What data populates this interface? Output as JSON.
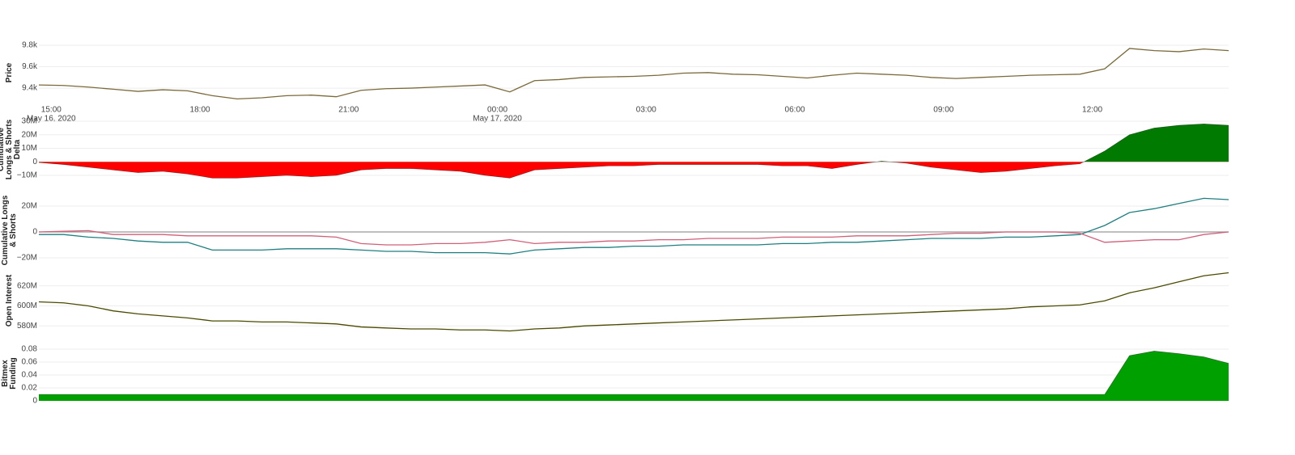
{
  "chart_data": [
    {
      "type": "line",
      "y_label": "Price",
      "grid": true,
      "x": [
        "2020-05-16 14:45",
        "2020-05-16 15:15",
        "2020-05-16 15:45",
        "2020-05-16 16:15",
        "2020-05-16 16:45",
        "2020-05-16 17:15",
        "2020-05-16 17:45",
        "2020-05-16 18:15",
        "2020-05-16 18:45",
        "2020-05-16 19:15",
        "2020-05-16 19:45",
        "2020-05-16 20:15",
        "2020-05-16 20:45",
        "2020-05-16 21:15",
        "2020-05-16 21:45",
        "2020-05-16 22:15",
        "2020-05-16 22:45",
        "2020-05-16 23:15",
        "2020-05-16 23:45",
        "2020-05-17 00:15",
        "2020-05-17 00:45",
        "2020-05-17 01:15",
        "2020-05-17 01:45",
        "2020-05-17 02:15",
        "2020-05-17 02:45",
        "2020-05-17 03:15",
        "2020-05-17 03:45",
        "2020-05-17 04:15",
        "2020-05-17 04:45",
        "2020-05-17 05:15",
        "2020-05-17 05:45",
        "2020-05-17 06:15",
        "2020-05-17 06:45",
        "2020-05-17 07:15",
        "2020-05-17 07:45",
        "2020-05-17 08:15",
        "2020-05-17 08:45",
        "2020-05-17 09:15",
        "2020-05-17 09:45",
        "2020-05-17 10:15",
        "2020-05-17 10:45",
        "2020-05-17 11:15",
        "2020-05-17 11:45",
        "2020-05-17 12:15",
        "2020-05-17 12:45",
        "2020-05-17 13:15",
        "2020-05-17 13:45",
        "2020-05-17 14:15",
        "2020-05-17 14:45"
      ],
      "xlim": [
        "2020-05-16 14:45",
        "2020-05-17 14:45"
      ],
      "xticks": [
        {
          "value": "2020-05-16 15:00",
          "label": "15:00"
        },
        {
          "value": "2020-05-16 18:00",
          "label": "18:00"
        },
        {
          "value": "2020-05-16 21:00",
          "label": "21:00"
        },
        {
          "value": "2020-05-17 00:00",
          "label": "00:00"
        },
        {
          "value": "2020-05-17 03:00",
          "label": "03:00"
        },
        {
          "value": "2020-05-17 06:00",
          "label": "06:00"
        },
        {
          "value": "2020-05-17 09:00",
          "label": "09:00"
        },
        {
          "value": "2020-05-17 12:00",
          "label": "12:00"
        }
      ],
      "x_date_labels": [
        {
          "value": "2020-05-16 15:00",
          "label": "May 16, 2020"
        },
        {
          "value": "2020-05-17 00:00",
          "label": "May 17, 2020"
        }
      ],
      "ylim": [
        9265,
        9845
      ],
      "yticks": [
        {
          "value": 9400,
          "label": "9.4k"
        },
        {
          "value": 9600,
          "label": "9.6k"
        },
        {
          "value": 9800,
          "label": "9.8k"
        }
      ],
      "series": [
        {
          "color": "#7a6a3a",
          "values": [
            9430,
            9425,
            9410,
            9390,
            9370,
            9385,
            9375,
            9330,
            9300,
            9310,
            9330,
            9335,
            9320,
            9380,
            9395,
            9400,
            9410,
            9420,
            9430,
            9365,
            9470,
            9480,
            9500,
            9505,
            9510,
            9520,
            9540,
            9545,
            9530,
            9525,
            9510,
            9495,
            9520,
            9540,
            9530,
            9520,
            9500,
            9490,
            9500,
            9510,
            9520,
            9525,
            9530,
            9580,
            9770,
            9750,
            9740,
            9765,
            9750
          ]
        }
      ]
    },
    {
      "type": "area",
      "y_label": "Cumulative Longs & Shorts Delta",
      "grid": true,
      "x": [
        "2020-05-16 14:45",
        "2020-05-16 15:15",
        "2020-05-16 15:45",
        "2020-05-16 16:15",
        "2020-05-16 16:45",
        "2020-05-16 17:15",
        "2020-05-16 17:45",
        "2020-05-16 18:15",
        "2020-05-16 18:45",
        "2020-05-16 19:15",
        "2020-05-16 19:45",
        "2020-05-16 20:15",
        "2020-05-16 20:45",
        "2020-05-16 21:15",
        "2020-05-16 21:45",
        "2020-05-16 22:15",
        "2020-05-16 22:45",
        "2020-05-16 23:15",
        "2020-05-16 23:45",
        "2020-05-17 00:15",
        "2020-05-17 00:45",
        "2020-05-17 01:15",
        "2020-05-17 01:45",
        "2020-05-17 02:15",
        "2020-05-17 02:45",
        "2020-05-17 03:15",
        "2020-05-17 03:45",
        "2020-05-17 04:15",
        "2020-05-17 04:45",
        "2020-05-17 05:15",
        "2020-05-17 05:45",
        "2020-05-17 06:15",
        "2020-05-17 06:45",
        "2020-05-17 07:15",
        "2020-05-17 07:45",
        "2020-05-17 08:15",
        "2020-05-17 08:45",
        "2020-05-17 09:15",
        "2020-05-17 09:45",
        "2020-05-17 10:15",
        "2020-05-17 10:45",
        "2020-05-17 11:15",
        "2020-05-17 11:45",
        "2020-05-17 12:15",
        "2020-05-17 12:45",
        "2020-05-17 13:15",
        "2020-05-17 13:45",
        "2020-05-17 14:15",
        "2020-05-17 14:45"
      ],
      "xlim": [
        "2020-05-16 14:45",
        "2020-05-17 14:45"
      ],
      "ylim": [
        -13000000,
        30000000
      ],
      "yticks": [
        {
          "value": -10000000,
          "label": "−10M"
        },
        0,
        {
          "value": 10000000,
          "label": "10M"
        },
        {
          "value": 20000000,
          "label": "20M"
        },
        {
          "value": 30000000,
          "label": "30M"
        }
      ],
      "colors": {
        "positive": "#007a00",
        "negative": "#ff0000"
      },
      "values": [
        -500000,
        -2000000,
        -4000000,
        -6000000,
        -8000000,
        -7000000,
        -9000000,
        -12000000,
        -12000000,
        -11000000,
        -10000000,
        -11000000,
        -10000000,
        -6000000,
        -5000000,
        -5000000,
        -6000000,
        -7000000,
        -10000000,
        -12000000,
        -6000000,
        -5000000,
        -4000000,
        -3000000,
        -3000000,
        -2000000,
        -2000000,
        -2000000,
        -2000000,
        -2000000,
        -3000000,
        -3000000,
        -5000000,
        -2000000,
        500000,
        -1000000,
        -4000000,
        -6000000,
        -8000000,
        -7000000,
        -5000000,
        -3000000,
        -1500000,
        8000000,
        20000000,
        25000000,
        27000000,
        28000000,
        27000000
      ]
    },
    {
      "type": "line",
      "y_label": "Cumulative Longs & Shorts",
      "grid": true,
      "zeroline": true,
      "x": [
        "2020-05-16 14:45",
        "2020-05-16 15:15",
        "2020-05-16 15:45",
        "2020-05-16 16:15",
        "2020-05-16 16:45",
        "2020-05-16 17:15",
        "2020-05-16 17:45",
        "2020-05-16 18:15",
        "2020-05-16 18:45",
        "2020-05-16 19:15",
        "2020-05-16 19:45",
        "2020-05-16 20:15",
        "2020-05-16 20:45",
        "2020-05-16 21:15",
        "2020-05-16 21:45",
        "2020-05-16 22:15",
        "2020-05-16 22:45",
        "2020-05-16 23:15",
        "2020-05-16 23:45",
        "2020-05-17 00:15",
        "2020-05-17 00:45",
        "2020-05-17 01:15",
        "2020-05-17 01:45",
        "2020-05-17 02:15",
        "2020-05-17 02:45",
        "2020-05-17 03:15",
        "2020-05-17 03:45",
        "2020-05-17 04:15",
        "2020-05-17 04:45",
        "2020-05-17 05:15",
        "2020-05-17 05:45",
        "2020-05-17 06:15",
        "2020-05-17 06:45",
        "2020-05-17 07:15",
        "2020-05-17 07:45",
        "2020-05-17 08:15",
        "2020-05-17 08:45",
        "2020-05-17 09:15",
        "2020-05-17 09:45",
        "2020-05-17 10:15",
        "2020-05-17 10:45",
        "2020-05-17 11:15",
        "2020-05-17 11:45",
        "2020-05-17 12:15",
        "2020-05-17 12:45",
        "2020-05-17 13:15",
        "2020-05-17 13:45",
        "2020-05-17 14:15",
        "2020-05-17 14:45"
      ],
      "xlim": [
        "2020-05-16 14:45",
        "2020-05-17 14:45"
      ],
      "ylim": [
        -24000000,
        29000000
      ],
      "yticks": [
        {
          "value": -20000000,
          "label": "−20M"
        },
        0,
        {
          "value": 20000000,
          "label": "20M"
        }
      ],
      "series": [
        {
          "color": "#1f7f80",
          "values": [
            -2000000,
            -2000000,
            -4000000,
            -5000000,
            -7000000,
            -8000000,
            -8000000,
            -14000000,
            -14000000,
            -14000000,
            -13000000,
            -13000000,
            -13000000,
            -14000000,
            -15000000,
            -15000000,
            -16000000,
            -16000000,
            -16000000,
            -17000000,
            -14000000,
            -13000000,
            -12000000,
            -12000000,
            -11000000,
            -11000000,
            -10000000,
            -10000000,
            -10000000,
            -10000000,
            -9000000,
            -9000000,
            -8000000,
            -8000000,
            -7000000,
            -6000000,
            -5000000,
            -5000000,
            -5000000,
            -4000000,
            -4000000,
            -3000000,
            -2000000,
            5000000,
            15000000,
            18000000,
            22000000,
            26000000,
            25000000
          ]
        },
        {
          "color": "#d0607a",
          "values": [
            0,
            500000,
            1000000,
            -2000000,
            -2000000,
            -2000000,
            -3000000,
            -3000000,
            -3000000,
            -3000000,
            -3000000,
            -3000000,
            -4000000,
            -9000000,
            -10000000,
            -10000000,
            -9000000,
            -9000000,
            -8000000,
            -6000000,
            -9000000,
            -8000000,
            -8000000,
            -7000000,
            -7000000,
            -6000000,
            -6000000,
            -5000000,
            -5000000,
            -5000000,
            -4000000,
            -4000000,
            -4000000,
            -3000000,
            -3000000,
            -3000000,
            -2000000,
            -1000000,
            -1000000,
            0,
            0,
            0,
            -1000000,
            -8000000,
            -7000000,
            -6000000,
            -6000000,
            -2000000,
            0
          ]
        }
      ]
    },
    {
      "type": "line",
      "y_label": "Open Interest",
      "grid": true,
      "x": [
        "2020-05-16 14:45",
        "2020-05-16 15:15",
        "2020-05-16 15:45",
        "2020-05-16 16:15",
        "2020-05-16 16:45",
        "2020-05-16 17:15",
        "2020-05-16 17:45",
        "2020-05-16 18:15",
        "2020-05-16 18:45",
        "2020-05-16 19:15",
        "2020-05-16 19:45",
        "2020-05-16 20:15",
        "2020-05-16 20:45",
        "2020-05-16 21:15",
        "2020-05-16 21:45",
        "2020-05-16 22:15",
        "2020-05-16 22:45",
        "2020-05-16 23:15",
        "2020-05-16 23:45",
        "2020-05-17 00:15",
        "2020-05-17 00:45",
        "2020-05-17 01:15",
        "2020-05-17 01:45",
        "2020-05-17 02:15",
        "2020-05-17 02:45",
        "2020-05-17 03:15",
        "2020-05-17 03:45",
        "2020-05-17 04:15",
        "2020-05-17 04:45",
        "2020-05-17 05:15",
        "2020-05-17 05:45",
        "2020-05-17 06:15",
        "2020-05-17 06:45",
        "2020-05-17 07:15",
        "2020-05-17 07:45",
        "2020-05-17 08:15",
        "2020-05-17 08:45",
        "2020-05-17 09:15",
        "2020-05-17 09:45",
        "2020-05-17 10:15",
        "2020-05-17 10:45",
        "2020-05-17 11:15",
        "2020-05-17 11:45",
        "2020-05-17 12:15",
        "2020-05-17 12:45",
        "2020-05-17 13:15",
        "2020-05-17 13:45",
        "2020-05-17 14:15",
        "2020-05-17 14:45"
      ],
      "xlim": [
        "2020-05-16 14:45",
        "2020-05-17 14:45"
      ],
      "ylim": [
        573000000,
        635000000
      ],
      "yticks": [
        {
          "value": 580000000,
          "label": "580M"
        },
        {
          "value": 600000000,
          "label": "600M"
        },
        {
          "value": 620000000,
          "label": "620M"
        }
      ],
      "series": [
        {
          "color": "#4a4a00",
          "values": [
            604000000,
            603000000,
            600000000,
            595000000,
            592000000,
            590000000,
            588000000,
            585000000,
            585000000,
            584000000,
            584000000,
            583000000,
            582000000,
            579000000,
            578000000,
            577000000,
            577000000,
            576000000,
            576000000,
            575000000,
            577000000,
            578000000,
            580000000,
            581000000,
            582000000,
            583000000,
            584000000,
            585000000,
            586000000,
            587000000,
            588000000,
            589000000,
            590000000,
            591000000,
            592000000,
            593000000,
            594000000,
            595000000,
            596000000,
            597000000,
            599000000,
            600000000,
            601000000,
            605000000,
            613000000,
            618000000,
            624000000,
            630000000,
            633000000
          ]
        }
      ]
    },
    {
      "type": "area",
      "y_label": "Bitmex Funding",
      "grid": true,
      "x": [
        "2020-05-16 14:45",
        "2020-05-16 15:15",
        "2020-05-16 15:45",
        "2020-05-16 16:15",
        "2020-05-16 16:45",
        "2020-05-16 17:15",
        "2020-05-16 17:45",
        "2020-05-16 18:15",
        "2020-05-16 18:45",
        "2020-05-16 19:15",
        "2020-05-16 19:45",
        "2020-05-16 20:15",
        "2020-05-16 20:45",
        "2020-05-16 21:15",
        "2020-05-16 21:45",
        "2020-05-16 22:15",
        "2020-05-16 22:45",
        "2020-05-16 23:15",
        "2020-05-16 23:45",
        "2020-05-17 00:15",
        "2020-05-17 00:45",
        "2020-05-17 01:15",
        "2020-05-17 01:45",
        "2020-05-17 02:15",
        "2020-05-17 02:45",
        "2020-05-17 03:15",
        "2020-05-17 03:45",
        "2020-05-17 04:15",
        "2020-05-17 04:45",
        "2020-05-17 05:15",
        "2020-05-17 05:45",
        "2020-05-17 06:15",
        "2020-05-17 06:45",
        "2020-05-17 07:15",
        "2020-05-17 07:45",
        "2020-05-17 08:15",
        "2020-05-17 08:45",
        "2020-05-17 09:15",
        "2020-05-17 09:45",
        "2020-05-17 10:15",
        "2020-05-17 10:45",
        "2020-05-17 11:15",
        "2020-05-17 11:45",
        "2020-05-17 12:15",
        "2020-05-17 12:45",
        "2020-05-17 13:15",
        "2020-05-17 13:45",
        "2020-05-17 14:15",
        "2020-05-17 14:45"
      ],
      "xlim": [
        "2020-05-16 14:45",
        "2020-05-17 14:45"
      ],
      "ylim": [
        0,
        0.0875
      ],
      "yticks": [
        0,
        0.02,
        0.04,
        0.06,
        0.08
      ],
      "colors": {
        "positive": "#00a000",
        "negative": "#00a000"
      },
      "values": [
        0.01,
        0.01,
        0.01,
        0.01,
        0.01,
        0.01,
        0.01,
        0.01,
        0.01,
        0.01,
        0.01,
        0.01,
        0.01,
        0.01,
        0.01,
        0.01,
        0.01,
        0.01,
        0.01,
        0.01,
        0.01,
        0.01,
        0.01,
        0.01,
        0.01,
        0.01,
        0.01,
        0.01,
        0.01,
        0.01,
        0.01,
        0.01,
        0.01,
        0.01,
        0.01,
        0.01,
        0.01,
        0.01,
        0.01,
        0.01,
        0.01,
        0.01,
        0.01,
        0.01,
        0.07,
        0.077,
        0.073,
        0.068,
        0.058
      ]
    }
  ]
}
